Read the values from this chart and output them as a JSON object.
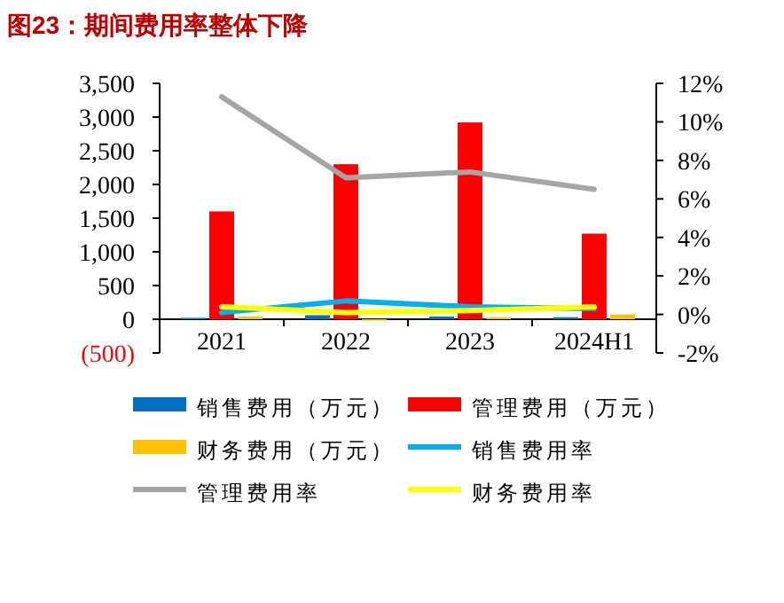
{
  "chart_data": {
    "type": "bar",
    "title": "图23：期间费用率整体下降",
    "categories": [
      "2021",
      "2022",
      "2023",
      "2024H1"
    ],
    "series": [
      {
        "name": "销售费用（万元）",
        "color": "#0070c0",
        "values": [
          20,
          60,
          40,
          30
        ]
      },
      {
        "name": "管理费用（万元）",
        "color": "#ff0000",
        "values": [
          1600,
          2300,
          2920,
          1270
        ]
      },
      {
        "name": "财务费用（万元）",
        "color": "#ffc000",
        "values": [
          40,
          -20,
          30,
          70
        ]
      },
      {
        "name": "销售费用率",
        "type": "line",
        "axis": "y2",
        "color": "#00b0f0",
        "values": [
          0.1,
          0.7,
          0.4,
          0.3
        ]
      },
      {
        "name": "管理费用率",
        "type": "line",
        "axis": "y2",
        "color": "#a5a5a5",
        "values": [
          11.3,
          7.1,
          7.4,
          6.5
        ]
      },
      {
        "name": "财务费用率",
        "type": "line",
        "axis": "y2",
        "color": "#ffff00",
        "values": [
          0.4,
          0.1,
          0.2,
          0.4
        ]
      }
    ],
    "ylim": [
      -500,
      3500
    ],
    "yticks": [
      {
        "value": -500,
        "label": "(500)"
      },
      {
        "value": 0,
        "label": "0"
      },
      {
        "value": 500,
        "label": "500"
      },
      {
        "value": 1000,
        "label": "1,000"
      },
      {
        "value": 1500,
        "label": "1,500"
      },
      {
        "value": 2000,
        "label": "2,000"
      },
      {
        "value": 2500,
        "label": "2,500"
      },
      {
        "value": 3000,
        "label": "3,000"
      },
      {
        "value": 3500,
        "label": "3,500"
      }
    ],
    "y2lim": [
      -2,
      12
    ],
    "y2ticks": [
      {
        "value": -2,
        "label": "-2%"
      },
      {
        "value": 0,
        "label": "0%"
      },
      {
        "value": 2,
        "label": "2%"
      },
      {
        "value": 4,
        "label": "4%"
      },
      {
        "value": 6,
        "label": "6%"
      },
      {
        "value": 8,
        "label": "8%"
      },
      {
        "value": 10,
        "label": "10%"
      },
      {
        "value": 12,
        "label": "12%"
      }
    ],
    "grid": false,
    "legend": "bottom"
  }
}
